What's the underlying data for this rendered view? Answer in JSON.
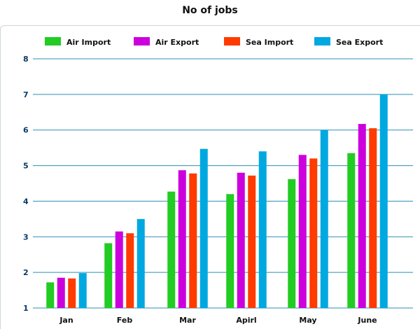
{
  "chart_data": {
    "type": "bar",
    "title": "No of jobs",
    "categories": [
      "Jan",
      "Feb",
      "Mar",
      "Apirl",
      "May",
      "June"
    ],
    "series": [
      {
        "name": "Air Import",
        "color": "#22cc22",
        "values": [
          1.72,
          2.82,
          4.27,
          4.2,
          4.62,
          5.35
        ]
      },
      {
        "name": "Air Export",
        "color": "#cc00dd",
        "values": [
          1.85,
          3.15,
          4.87,
          4.8,
          5.3,
          6.17
        ]
      },
      {
        "name": "Sea Import",
        "color": "#ff3b00",
        "values": [
          1.83,
          3.1,
          4.78,
          4.72,
          5.2,
          6.05
        ]
      },
      {
        "name": "Sea Export",
        "color": "#00a8e0",
        "values": [
          1.98,
          3.5,
          5.47,
          5.4,
          6.0,
          7.0
        ]
      }
    ],
    "yticks": [
      1,
      2,
      3,
      4,
      5,
      6,
      7,
      8
    ],
    "ylim": [
      1,
      8
    ],
    "grid": true,
    "legend": "top"
  }
}
